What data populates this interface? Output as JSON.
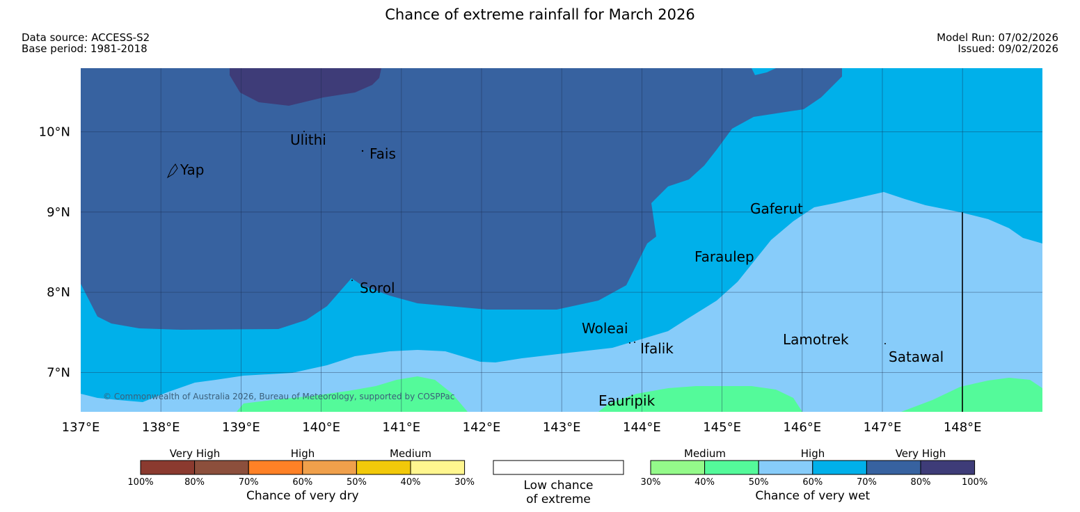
{
  "title": "Chance of extreme rainfall for March 2026",
  "meta": {
    "data_source": "Data source: ACCESS-S2",
    "base_period": "Base period: 1981-2018",
    "model_run": "Model Run: 07/02/2026",
    "issued": "Issued: 09/02/2026"
  },
  "map": {
    "lat_labels": [
      "10°N",
      "9°N",
      "8°N",
      "7°N"
    ],
    "lon_labels": [
      "137°E",
      "138°E",
      "139°E",
      "140°E",
      "141°E",
      "142°E",
      "143°E",
      "144°E",
      "145°E",
      "146°E",
      "147°E",
      "148°E"
    ],
    "places": [
      "Ulithi",
      "Fais",
      "Yap",
      "Gaferut",
      "Faraulep",
      "Sorol",
      "Woleai",
      "Ifalik",
      "Lamotrek",
      "Satawal",
      "Eauripik"
    ],
    "copyright": "© Commonwealth of Australia 2026, Bureau of Meteorology, supported by COSPPac"
  },
  "legend": {
    "dry": {
      "categories": [
        "Very High",
        "High",
        "Medium"
      ],
      "ticks": [
        "100%",
        "80%",
        "70%",
        "60%",
        "50%",
        "40%",
        "30%"
      ],
      "colors": [
        "#8b3a2f",
        "#8c4f3c",
        "#ff8126",
        "#f0a04b",
        "#f2c90a",
        "#fff68f"
      ],
      "title": "Chance of very dry"
    },
    "low": {
      "title_line1": "Low chance",
      "title_line2": "of extreme"
    },
    "wet": {
      "categories": [
        "Medium",
        "High",
        "Very High"
      ],
      "ticks": [
        "30%",
        "40%",
        "50%",
        "60%",
        "70%",
        "80%",
        "100%"
      ],
      "colors": [
        "#94fa8a",
        "#54fa9a",
        "#87ccfa",
        "#00b0ea",
        "#3762a0",
        "#3e3c78"
      ],
      "title": "Chance of very wet"
    }
  }
}
